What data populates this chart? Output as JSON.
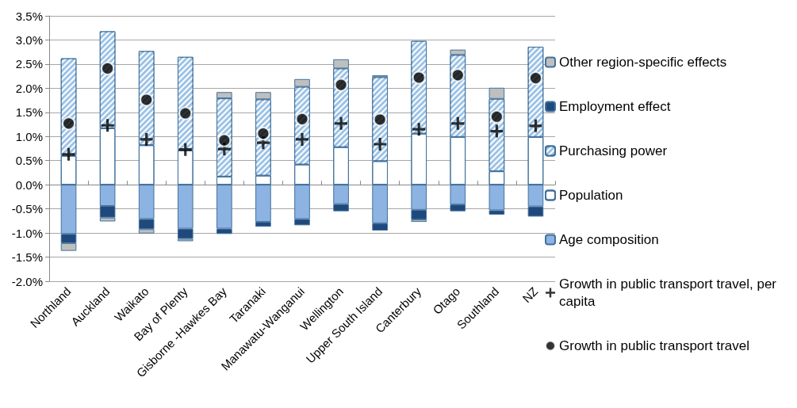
{
  "chart_data": {
    "type": "bar",
    "stacked": true,
    "categories": [
      "Northland",
      "Auckland",
      "Waikato",
      "Bay of Plenty",
      "Gisborne -Hawkes Bay",
      "Taranaki",
      "Manawatu-Wanganui",
      "Wellington",
      "Upper South Island",
      "Canterbury",
      "Otago",
      "Southland",
      "NZ"
    ],
    "series": [
      {
        "name": "Age composition",
        "color": "#8db3e2",
        "values": [
          -1.02,
          -0.44,
          -0.71,
          -0.91,
          -0.91,
          -0.77,
          -0.71,
          -0.4,
          -0.8,
          -0.52,
          -0.41,
          -0.53,
          -0.45
        ]
      },
      {
        "name": "Population",
        "color": "#ffffff",
        "values": [
          0.6,
          1.17,
          0.82,
          0.71,
          0.17,
          0.19,
          0.42,
          0.78,
          0.49,
          1.06,
          0.99,
          0.28,
          0.99
        ]
      },
      {
        "name": "Purchasing power",
        "color": "#9dc3e6",
        "values": [
          2.02,
          2.01,
          1.95,
          1.94,
          1.62,
          1.58,
          1.61,
          1.63,
          1.74,
          1.92,
          1.7,
          1.5,
          1.87
        ]
      },
      {
        "name": "Employment effect",
        "color": "#1f497d",
        "values": [
          -0.19,
          -0.24,
          -0.21,
          -0.21,
          -0.11,
          -0.1,
          -0.13,
          -0.15,
          -0.15,
          -0.2,
          -0.14,
          -0.09,
          -0.21
        ]
      },
      {
        "name": "Other region-specific effects",
        "color": "#bfbfbf",
        "values": [
          -0.16,
          -0.08,
          -0.09,
          -0.05,
          0.13,
          0.15,
          0.16,
          0.19,
          0.04,
          -0.05,
          0.11,
          0.23,
          null
        ]
      },
      {
        "name": "Growth in public transport travel, per capita",
        "type": "scatter",
        "marker": "cross",
        "color": "#000000",
        "values": [
          0.63,
          1.23,
          0.94,
          0.73,
          0.74,
          0.87,
          0.94,
          1.27,
          0.84,
          1.15,
          1.27,
          1.11,
          1.22
        ]
      },
      {
        "name": "Growth in public transport travel",
        "type": "scatter",
        "marker": "circle",
        "color": "#000000",
        "values": [
          1.27,
          2.41,
          1.76,
          1.48,
          0.92,
          1.06,
          1.36,
          2.07,
          1.35,
          2.22,
          2.27,
          1.41,
          2.21
        ]
      }
    ],
    "ylim": [
      -2.0,
      3.5
    ],
    "yticks": [
      {
        "value": -2.0,
        "label": "-2.0%"
      },
      {
        "value": -1.5,
        "label": "-1.5%"
      },
      {
        "value": -1.0,
        "label": "-1.0%"
      },
      {
        "value": -0.5,
        "label": "-0.5%"
      },
      {
        "value": 0,
        "label": "0.0%"
      },
      {
        "value": 0.5,
        "label": "0.5%"
      },
      {
        "value": 1.0,
        "label": "1.0%"
      },
      {
        "value": 1.5,
        "label": "1.5%"
      },
      {
        "value": 2.0,
        "label": "2.0%"
      },
      {
        "value": 2.5,
        "label": "2.5%"
      },
      {
        "value": 3.0,
        "label": "3.0%"
      },
      {
        "value": 3.5,
        "label": "3.5%"
      }
    ],
    "grid": "y",
    "legend": "right"
  }
}
